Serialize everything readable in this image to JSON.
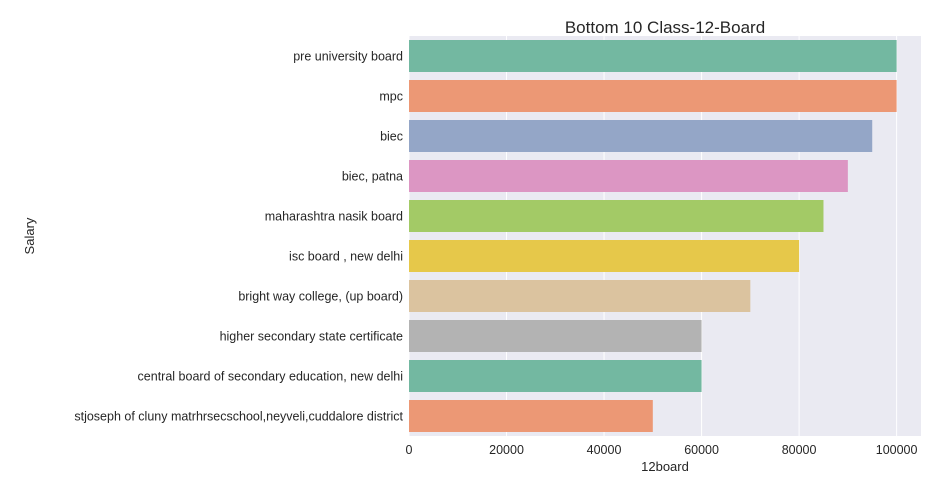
{
  "chart_data": {
    "type": "bar",
    "orientation": "horizontal",
    "title": "Bottom 10 Class-12-Board",
    "xlabel": "12board",
    "ylabel": "Salary",
    "xlim": [
      0,
      105000
    ],
    "xticks": [
      0,
      20000,
      40000,
      60000,
      80000,
      100000
    ],
    "grid": true,
    "categories": [
      "pre university board",
      "mpc",
      "biec",
      "biec, patna",
      "maharashtra nasik board",
      "isc board , new delhi",
      "bright way college, (up board)",
      "higher secondary state certificate",
      "central board of secondary education, new delhi",
      "stjoseph of cluny matrhrsecschool,neyveli,cuddalore district"
    ],
    "values": [
      100000,
      100000,
      95000,
      90000,
      85000,
      80000,
      70000,
      60000,
      60000,
      50000
    ],
    "colors": [
      "#73b8a1",
      "#ec9875",
      "#94a6c7",
      "#dc96c3",
      "#a3ca66",
      "#e6c84a",
      "#dbc39f",
      "#b3b3b3",
      "#73b8a1",
      "#ec9875"
    ],
    "background_color": "#eaeaf2",
    "grid_color": "#ffffff"
  }
}
